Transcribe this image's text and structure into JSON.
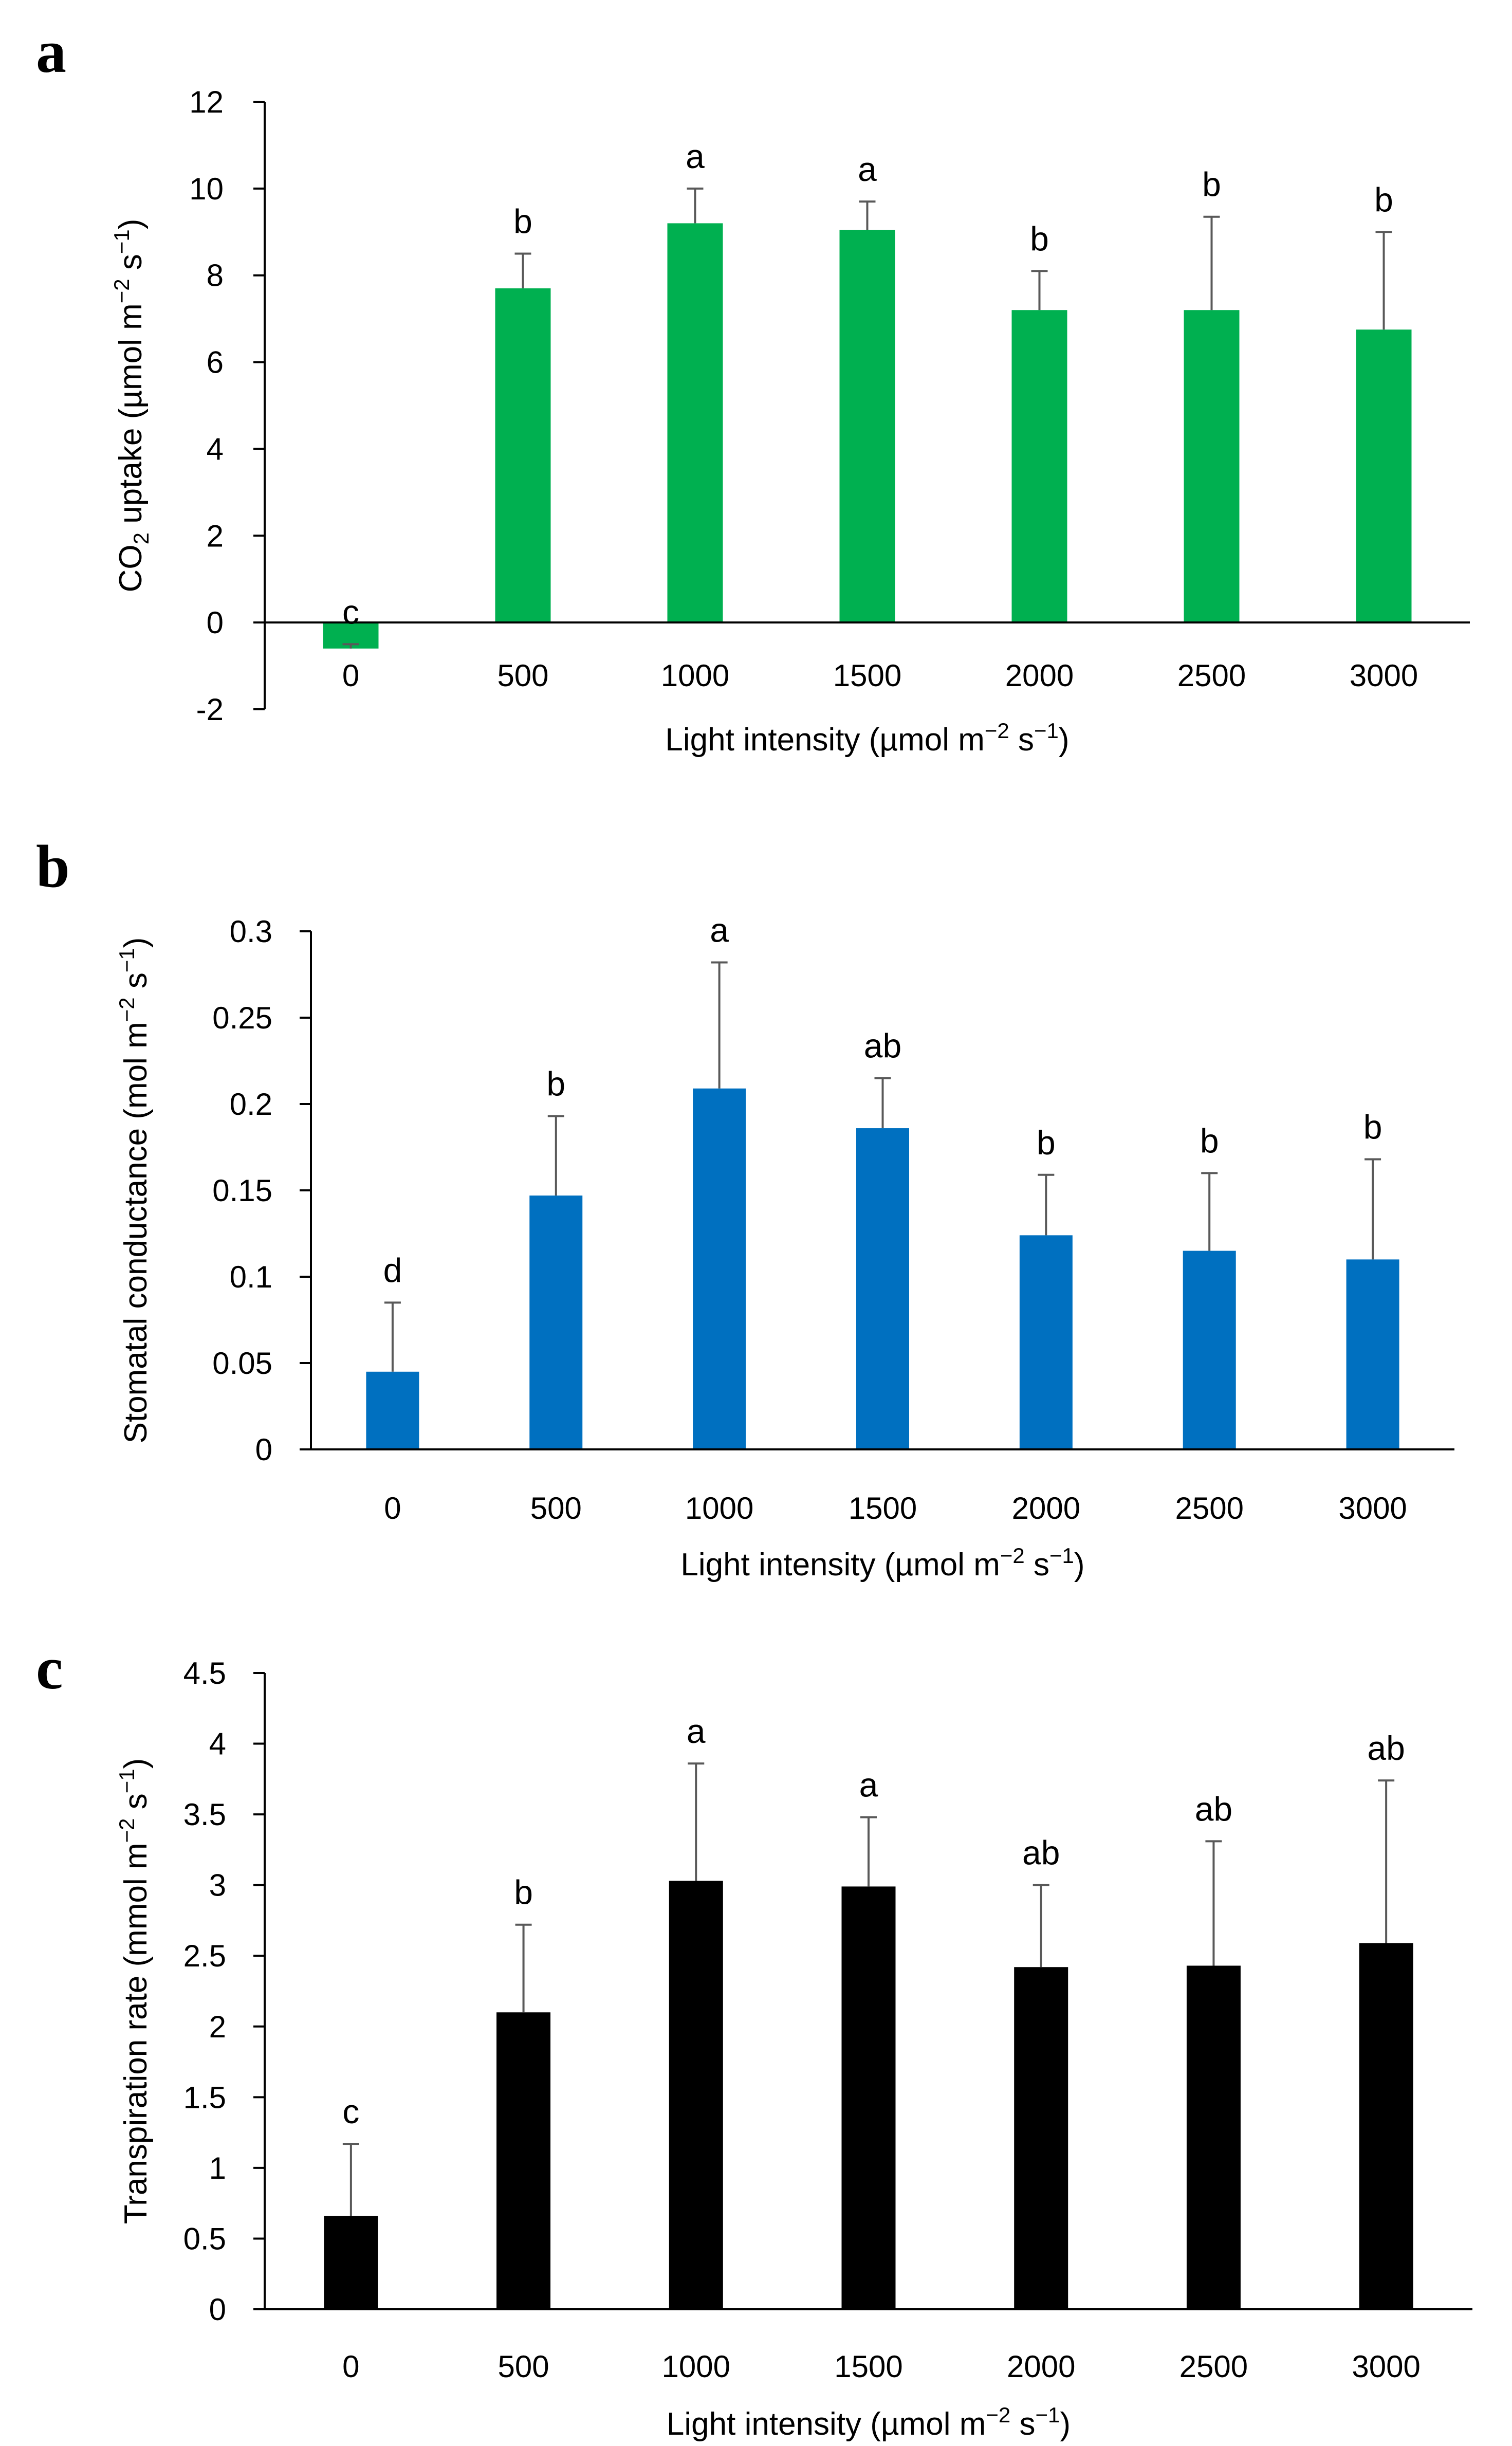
{
  "chart_data": [
    {
      "type": "bar",
      "panel_label": "a",
      "categories": [
        "0",
        "500",
        "1000",
        "1500",
        "2000",
        "2500",
        "3000"
      ],
      "values": [
        -0.6,
        7.7,
        9.2,
        9.05,
        7.2,
        7.2,
        6.75
      ],
      "error_upper": [
        -0.5,
        8.5,
        10.0,
        9.7,
        8.1,
        9.35,
        9.0
      ],
      "significance": [
        "c",
        "b",
        "a",
        "a",
        "b",
        "b",
        "b"
      ],
      "bar_color": "#00b050",
      "ylim": [
        -2,
        12
      ],
      "yticks": [
        -2,
        0,
        2,
        4,
        6,
        8,
        10,
        12
      ],
      "ytick_labels": [
        "-2",
        "0",
        "2",
        "4",
        "6",
        "8",
        "10",
        "12"
      ],
      "ylabel": {
        "pre": "CO",
        "sub": "2",
        "mid": " uptake  (µmol m",
        "sup1": "−2",
        "mid2": " s",
        "sup2": "−1",
        "post": ")"
      },
      "xlabel": {
        "pre": "Light intensity (µmol m",
        "sup1": "−2",
        "mid": " s",
        "sup2": "−1",
        "post": ")"
      },
      "grid": false
    },
    {
      "type": "bar",
      "panel_label": "b",
      "categories": [
        "0",
        "500",
        "1000",
        "1500",
        "2000",
        "2500",
        "3000"
      ],
      "values": [
        0.045,
        0.147,
        0.209,
        0.186,
        0.124,
        0.115,
        0.11
      ],
      "error_upper": [
        0.085,
        0.193,
        0.282,
        0.215,
        0.159,
        0.16,
        0.168
      ],
      "significance": [
        "d",
        "b",
        "a",
        "ab",
        "b",
        "b",
        "b"
      ],
      "bar_color": "#0070c0",
      "ylim": [
        0,
        0.3
      ],
      "yticks": [
        0,
        0.05,
        0.1,
        0.15,
        0.2,
        0.25,
        0.3
      ],
      "ytick_labels": [
        "0",
        "0.05",
        "0.1",
        "0.15",
        "0.2",
        "0.25",
        "0.3"
      ],
      "ylabel": {
        "pre": "Stomatal conductance (mol m",
        "sup1": "−2",
        "mid": " s",
        "sup2": "−1",
        "post": ")"
      },
      "xlabel": {
        "pre": "Light intensity (µmol m",
        "sup1": "−2",
        "mid": " s",
        "sup2": "−1",
        "post": ")"
      },
      "grid": false
    },
    {
      "type": "bar",
      "panel_label": "c",
      "categories": [
        "0",
        "500",
        "1000",
        "1500",
        "2000",
        "2500",
        "3000"
      ],
      "values": [
        0.66,
        2.1,
        3.03,
        2.99,
        2.42,
        2.43,
        2.59
      ],
      "error_upper": [
        1.17,
        2.72,
        3.86,
        3.48,
        3.0,
        3.31,
        3.74
      ],
      "significance": [
        "c",
        "b",
        "a",
        "a",
        "ab",
        "ab",
        "ab"
      ],
      "bar_color": "#000000",
      "ylim": [
        0,
        4.5
      ],
      "yticks": [
        0,
        0.5,
        1,
        1.5,
        2,
        2.5,
        3,
        3.5,
        4,
        4.5
      ],
      "ytick_labels": [
        "0",
        "0.5",
        "1",
        "1.5",
        "2",
        "2.5",
        "3",
        "3.5",
        "4",
        "4.5"
      ],
      "ylabel": {
        "pre": "Transpiration rate (mmol m",
        "sup1": "−2",
        "mid": " s",
        "sup2": "−1",
        "post": ")"
      },
      "xlabel": {
        "pre": "Light intensity (µmol m",
        "sup1": "−2",
        "mid": " s",
        "sup2": "−1",
        "post": ")"
      },
      "grid": false
    }
  ]
}
